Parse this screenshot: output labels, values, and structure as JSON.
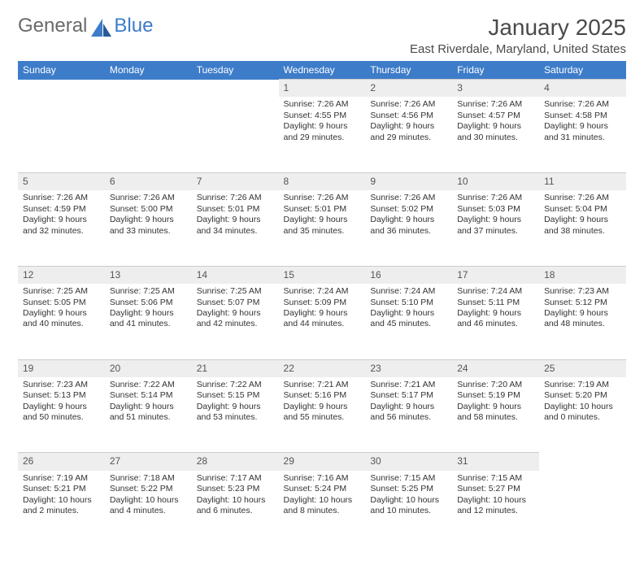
{
  "brand": {
    "part1": "General",
    "part2": "Blue"
  },
  "title": "January 2025",
  "location": "East Riverdale, Maryland, United States",
  "colors": {
    "header_bg": "#3d7cc9",
    "header_text": "#ffffff",
    "daynum_bg": "#eeeeee",
    "text": "#333333",
    "page_bg": "#ffffff"
  },
  "day_headers": [
    "Sunday",
    "Monday",
    "Tuesday",
    "Wednesday",
    "Thursday",
    "Friday",
    "Saturday"
  ],
  "weeks": [
    [
      null,
      null,
      null,
      {
        "n": "1",
        "sr": "7:26 AM",
        "ss": "4:55 PM",
        "dl": "9 hours and 29 minutes."
      },
      {
        "n": "2",
        "sr": "7:26 AM",
        "ss": "4:56 PM",
        "dl": "9 hours and 29 minutes."
      },
      {
        "n": "3",
        "sr": "7:26 AM",
        "ss": "4:57 PM",
        "dl": "9 hours and 30 minutes."
      },
      {
        "n": "4",
        "sr": "7:26 AM",
        "ss": "4:58 PM",
        "dl": "9 hours and 31 minutes."
      }
    ],
    [
      {
        "n": "5",
        "sr": "7:26 AM",
        "ss": "4:59 PM",
        "dl": "9 hours and 32 minutes."
      },
      {
        "n": "6",
        "sr": "7:26 AM",
        "ss": "5:00 PM",
        "dl": "9 hours and 33 minutes."
      },
      {
        "n": "7",
        "sr": "7:26 AM",
        "ss": "5:01 PM",
        "dl": "9 hours and 34 minutes."
      },
      {
        "n": "8",
        "sr": "7:26 AM",
        "ss": "5:01 PM",
        "dl": "9 hours and 35 minutes."
      },
      {
        "n": "9",
        "sr": "7:26 AM",
        "ss": "5:02 PM",
        "dl": "9 hours and 36 minutes."
      },
      {
        "n": "10",
        "sr": "7:26 AM",
        "ss": "5:03 PM",
        "dl": "9 hours and 37 minutes."
      },
      {
        "n": "11",
        "sr": "7:26 AM",
        "ss": "5:04 PM",
        "dl": "9 hours and 38 minutes."
      }
    ],
    [
      {
        "n": "12",
        "sr": "7:25 AM",
        "ss": "5:05 PM",
        "dl": "9 hours and 40 minutes."
      },
      {
        "n": "13",
        "sr": "7:25 AM",
        "ss": "5:06 PM",
        "dl": "9 hours and 41 minutes."
      },
      {
        "n": "14",
        "sr": "7:25 AM",
        "ss": "5:07 PM",
        "dl": "9 hours and 42 minutes."
      },
      {
        "n": "15",
        "sr": "7:24 AM",
        "ss": "5:09 PM",
        "dl": "9 hours and 44 minutes."
      },
      {
        "n": "16",
        "sr": "7:24 AM",
        "ss": "5:10 PM",
        "dl": "9 hours and 45 minutes."
      },
      {
        "n": "17",
        "sr": "7:24 AM",
        "ss": "5:11 PM",
        "dl": "9 hours and 46 minutes."
      },
      {
        "n": "18",
        "sr": "7:23 AM",
        "ss": "5:12 PM",
        "dl": "9 hours and 48 minutes."
      }
    ],
    [
      {
        "n": "19",
        "sr": "7:23 AM",
        "ss": "5:13 PM",
        "dl": "9 hours and 50 minutes."
      },
      {
        "n": "20",
        "sr": "7:22 AM",
        "ss": "5:14 PM",
        "dl": "9 hours and 51 minutes."
      },
      {
        "n": "21",
        "sr": "7:22 AM",
        "ss": "5:15 PM",
        "dl": "9 hours and 53 minutes."
      },
      {
        "n": "22",
        "sr": "7:21 AM",
        "ss": "5:16 PM",
        "dl": "9 hours and 55 minutes."
      },
      {
        "n": "23",
        "sr": "7:21 AM",
        "ss": "5:17 PM",
        "dl": "9 hours and 56 minutes."
      },
      {
        "n": "24",
        "sr": "7:20 AM",
        "ss": "5:19 PM",
        "dl": "9 hours and 58 minutes."
      },
      {
        "n": "25",
        "sr": "7:19 AM",
        "ss": "5:20 PM",
        "dl": "10 hours and 0 minutes."
      }
    ],
    [
      {
        "n": "26",
        "sr": "7:19 AM",
        "ss": "5:21 PM",
        "dl": "10 hours and 2 minutes."
      },
      {
        "n": "27",
        "sr": "7:18 AM",
        "ss": "5:22 PM",
        "dl": "10 hours and 4 minutes."
      },
      {
        "n": "28",
        "sr": "7:17 AM",
        "ss": "5:23 PM",
        "dl": "10 hours and 6 minutes."
      },
      {
        "n": "29",
        "sr": "7:16 AM",
        "ss": "5:24 PM",
        "dl": "10 hours and 8 minutes."
      },
      {
        "n": "30",
        "sr": "7:15 AM",
        "ss": "5:25 PM",
        "dl": "10 hours and 10 minutes."
      },
      {
        "n": "31",
        "sr": "7:15 AM",
        "ss": "5:27 PM",
        "dl": "10 hours and 12 minutes."
      },
      null
    ]
  ],
  "labels": {
    "sunrise": "Sunrise:",
    "sunset": "Sunset:",
    "daylight": "Daylight:"
  }
}
